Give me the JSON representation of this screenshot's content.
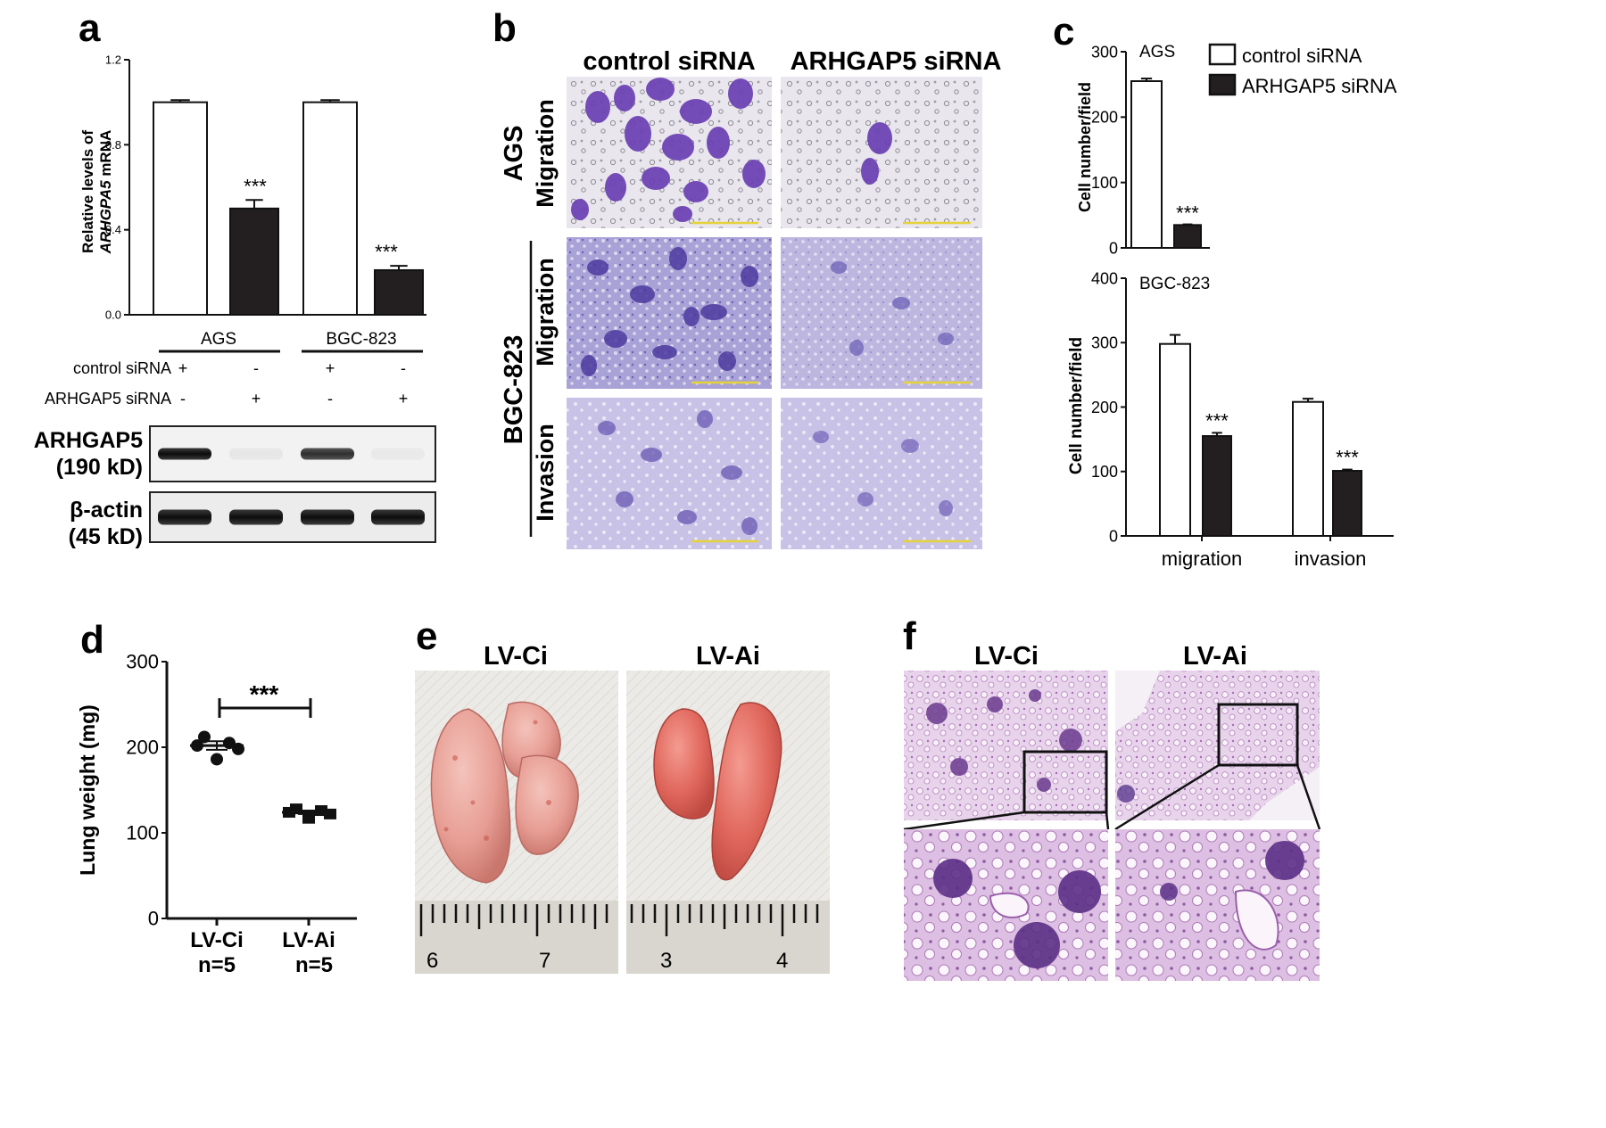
{
  "panels": {
    "a": {
      "letter": "a",
      "ylabel_line1": "Relative levels of",
      "ylabel_line2_italic": "ARHGPA5",
      "ylabel_line2_rest": " mRNA",
      "significance": [
        "***",
        "***"
      ],
      "groups": [
        "AGS",
        "BGC-823"
      ],
      "row_labels": [
        "control siRNA",
        "ARHGAP5 siRNA"
      ],
      "row_signs": [
        [
          "+",
          "-",
          "+",
          "-"
        ],
        [
          "-",
          "+",
          "-",
          "+"
        ]
      ],
      "blot_labels": [
        {
          "line1": "ARHGAP5",
          "line2": "(190 kD)"
        },
        {
          "line1": "β-actin",
          "line2": "(45 kD)"
        }
      ],
      "blot_band_intensity": [
        [
          1,
          0.05,
          0.85,
          0.02
        ],
        [
          1,
          1,
          1,
          1
        ]
      ]
    },
    "b": {
      "letter": "b",
      "col_headers": [
        "control siRNA",
        "ARHGAP5 siRNA"
      ],
      "groups": [
        "AGS",
        "BGC-823"
      ],
      "row_labels": [
        "Migration",
        "Migration",
        "Invasion"
      ]
    },
    "c": {
      "letter": "c",
      "legend": [
        "control siRNA",
        "ARHGAP5 siRNA"
      ],
      "top_title": "AGS",
      "bottom_title": "BGC-823",
      "ylabel": "Cell number/field",
      "significance": "***",
      "colors": {
        "control": "#ffffff",
        "knockdown": "#231f20"
      }
    },
    "d": {
      "letter": "d",
      "ylabel": "Lung weight (mg)",
      "significance": "***",
      "group_labels": [
        {
          "name": "LV-Ci",
          "n": "n=5"
        },
        {
          "name": "LV-Ai",
          "n": "n=5"
        }
      ]
    },
    "e": {
      "letter": "e",
      "labels": [
        "LV-Ci",
        "LV-Ai"
      ],
      "ruler_numbers": [
        "6",
        "7",
        "3",
        "4"
      ]
    },
    "f": {
      "letter": "f",
      "labels": [
        "LV-Ci",
        "LV-Ai"
      ]
    }
  },
  "chart_data": [
    {
      "panel": "a",
      "type": "bar",
      "categories": [
        "AGS",
        "BGC-823"
      ],
      "series": [
        {
          "name": "control siRNA",
          "values": [
            1.0,
            1.0
          ],
          "errors": [
            0.01,
            0.01
          ]
        },
        {
          "name": "ARHGAP5 siRNA",
          "values": [
            0.5,
            0.21
          ],
          "errors": [
            0.04,
            0.02
          ]
        }
      ],
      "ylim": [
        0,
        1.2
      ],
      "yticks": [
        0.0,
        0.4,
        0.8,
        1.2
      ],
      "ytick_labels": [
        "0.0",
        "0.4",
        "0.8",
        "1.2"
      ]
    },
    {
      "panel": "c-top",
      "type": "bar",
      "title": "AGS",
      "categories": [
        ""
      ],
      "series": [
        {
          "name": "control siRNA",
          "values": [
            255
          ],
          "errors": [
            4
          ]
        },
        {
          "name": "ARHGAP5 siRNA",
          "values": [
            35
          ],
          "errors": [
            1
          ]
        }
      ],
      "ylim": [
        0,
        300
      ],
      "yticks": [
        0,
        100,
        200,
        300
      ],
      "ytick_labels": [
        "0",
        "100",
        "200",
        "300"
      ]
    },
    {
      "panel": "c-bottom",
      "type": "bar",
      "title": "BGC-823",
      "categories": [
        "migration",
        "invasion"
      ],
      "series": [
        {
          "name": "control siRNA",
          "values": [
            298,
            208
          ],
          "errors": [
            14,
            5
          ]
        },
        {
          "name": "ARHGAP5 siRNA",
          "values": [
            155,
            101
          ],
          "errors": [
            5,
            2
          ]
        }
      ],
      "ylim": [
        0,
        400
      ],
      "yticks": [
        0,
        100,
        200,
        300,
        400
      ],
      "ytick_labels": [
        "0",
        "100",
        "200",
        "300",
        "400"
      ]
    },
    {
      "panel": "d",
      "type": "scatter",
      "categories": [
        "LV-Ci",
        "LV-Ai"
      ],
      "series": [
        {
          "name": "LV-Ci",
          "values": [
            212,
            205,
            202,
            198,
            186
          ],
          "mean": 202,
          "sem": 5
        },
        {
          "name": "LV-Ai",
          "values": [
            128,
            126,
            124,
            122,
            117
          ],
          "mean": 124,
          "sem": 2
        }
      ],
      "ylim": [
        0,
        300
      ],
      "yticks": [
        0,
        100,
        200,
        300
      ],
      "ytick_labels": [
        "0",
        "100",
        "200",
        "300"
      ]
    }
  ]
}
